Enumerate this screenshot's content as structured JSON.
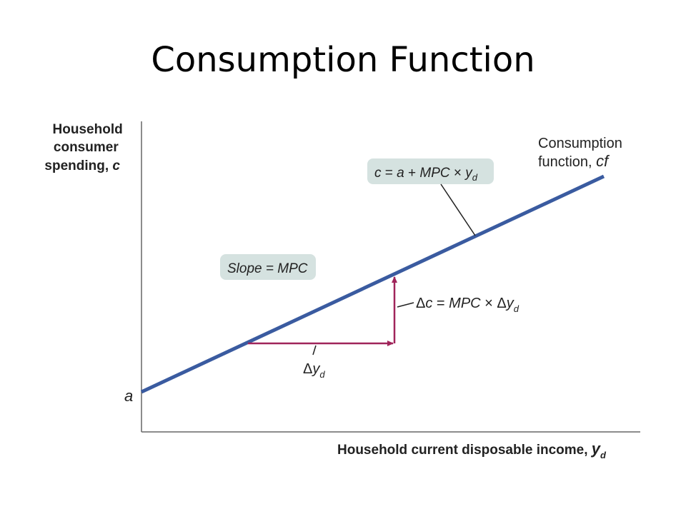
{
  "title": "Consumption Function",
  "y_axis_label": [
    "Household",
    "consumer",
    "spending,",
    "c"
  ],
  "x_axis_label": [
    "Household current disposable income,",
    "y",
    "d"
  ],
  "intercept_label": "a",
  "curve_label": [
    "Consumption",
    "function,",
    "cf"
  ],
  "equation_box": {
    "c": "c",
    "eq": " = ",
    "a": "a",
    "plus": " + ",
    "mpc": "MPC",
    "times": " × ",
    "y": "y",
    "d": "d"
  },
  "slope_box": "Slope = MPC",
  "delta_c_label": {
    "delta": "Δ",
    "c": "c",
    "eq": " = ",
    "mpc": "MPC",
    "times": " × ",
    "delta2": "Δ",
    "y": "y",
    "d": "d"
  },
  "delta_y_label": {
    "delta": "Δ",
    "y": "y",
    "d": "d"
  },
  "colors": {
    "consumption_line": "#3a5ba0",
    "arrows": "#a0245a",
    "axes": "#666666",
    "box_fill": "#d5e2e0"
  }
}
